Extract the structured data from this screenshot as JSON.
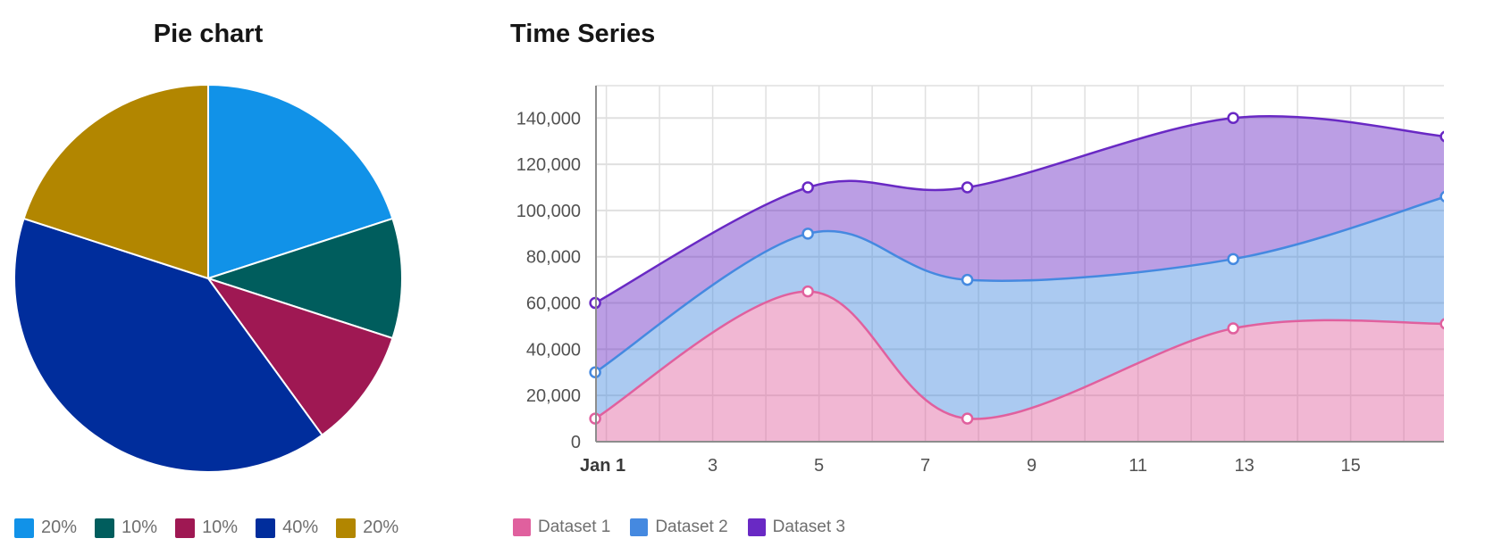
{
  "chart_data": [
    {
      "type": "pie",
      "title": "Pie chart",
      "slices": [
        {
          "label": "20%",
          "value": 20,
          "color": "#1192e8"
        },
        {
          "label": "10%",
          "value": 10,
          "color": "#005d5d"
        },
        {
          "label": "10%",
          "value": 10,
          "color": "#9f1853"
        },
        {
          "label": "40%",
          "value": 40,
          "color": "#002d9c"
        },
        {
          "label": "20%",
          "value": 20,
          "color": "#b28600"
        }
      ],
      "start": "top",
      "direction": "clockwise",
      "legend": "bottom-left"
    },
    {
      "type": "area",
      "title": "Time Series",
      "stacked": true,
      "curve": "smooth",
      "x": [
        "Jan 1",
        "Jan 5",
        "Jan 8",
        "Jan 13",
        "Jan 17"
      ],
      "series": [
        {
          "name": "Dataset 1",
          "color": "#e0609e",
          "values": [
            10000,
            65000,
            10000,
            49000,
            51000
          ]
        },
        {
          "name": "Dataset 2",
          "color": "#4589e0",
          "values": [
            20000,
            25000,
            60000,
            30000,
            55000
          ]
        },
        {
          "name": "Dataset 3",
          "color": "#6929c4",
          "values": [
            30000,
            20000,
            40000,
            61000,
            26000
          ]
        }
      ],
      "xaxis": {
        "type": "time",
        "tick_labels": [
          "Jan 1",
          "3",
          "5",
          "7",
          "9",
          "11",
          "13",
          "15"
        ],
        "range": [
          "Jan 1",
          "Jan 17"
        ]
      },
      "yaxis": {
        "tick_labels": [
          "0",
          "20,000",
          "40,000",
          "60,000",
          "80,000",
          "100,000",
          "120,000",
          "140,000"
        ],
        "ylim": [
          0,
          154000
        ]
      },
      "grid": true,
      "legend": "bottom-left"
    }
  ]
}
